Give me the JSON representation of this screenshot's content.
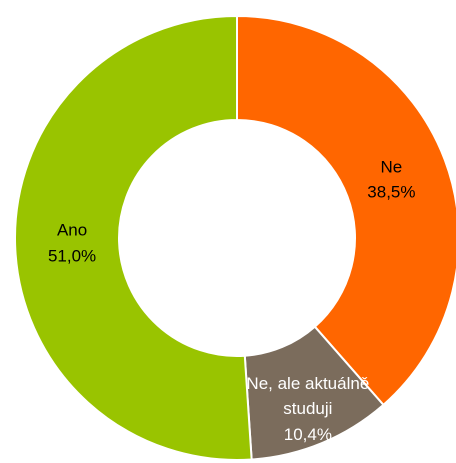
{
  "chart_data": {
    "type": "donut",
    "categories": [
      "Ne",
      "Ne, ale aktuálně studuji",
      "Ano"
    ],
    "values": [
      38.5,
      10.4,
      51.0
    ],
    "value_labels": [
      "38,5%",
      "10,4%",
      "51,0%"
    ],
    "colors": [
      "#ff6600",
      "#7b6c5c",
      "#99c400"
    ]
  }
}
